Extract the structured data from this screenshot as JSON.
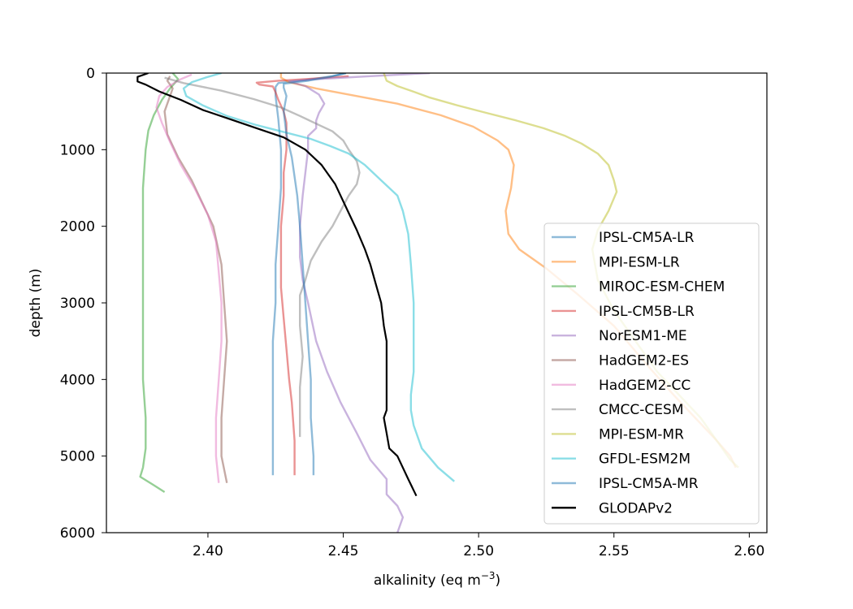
{
  "chart_data": {
    "type": "line",
    "title": "",
    "xlabel": "alkalinity (eq m",
    "xlabel_sup": "−3",
    "xlabel_end": ")",
    "ylabel": "depth (m)",
    "xlim": [
      2.3625,
      2.6065
    ],
    "ylim": [
      6000,
      0
    ],
    "y_inverted": true,
    "xticks": [
      2.4,
      2.45,
      2.5,
      2.55,
      2.6
    ],
    "xtick_labels": [
      "2.40",
      "2.45",
      "2.50",
      "2.55",
      "2.60"
    ],
    "yticks": [
      0,
      1000,
      2000,
      3000,
      4000,
      5000,
      6000
    ],
    "ytick_labels": [
      "0",
      "1000",
      "2000",
      "3000",
      "4000",
      "5000",
      "6000"
    ],
    "grid": false,
    "legend_position": "lower-right",
    "series": [
      {
        "name": "IPSL-CM5A-LR",
        "color": "#1f77b4",
        "opacity": 0.5,
        "points": [
          [
            2.451,
            0
          ],
          [
            2.446,
            40
          ],
          [
            2.436,
            90
          ],
          [
            2.426,
            130
          ],
          [
            2.425,
            180
          ],
          [
            2.425,
            300
          ],
          [
            2.426,
            600
          ],
          [
            2.427,
            1000
          ],
          [
            2.427,
            1500
          ],
          [
            2.426,
            2000
          ],
          [
            2.425,
            2500
          ],
          [
            2.425,
            3000
          ],
          [
            2.424,
            3500
          ],
          [
            2.424,
            4000
          ],
          [
            2.424,
            4500
          ],
          [
            2.424,
            5000
          ],
          [
            2.424,
            5250
          ]
        ]
      },
      {
        "name": "MPI-ESM-LR",
        "color": "#ff7f0e",
        "opacity": 0.5,
        "points": [
          [
            2.427,
            0
          ],
          [
            2.427,
            60
          ],
          [
            2.43,
            120
          ],
          [
            2.44,
            200
          ],
          [
            2.455,
            300
          ],
          [
            2.47,
            400
          ],
          [
            2.486,
            550
          ],
          [
            2.498,
            700
          ],
          [
            2.507,
            880
          ],
          [
            2.511,
            1000
          ],
          [
            2.513,
            1200
          ],
          [
            2.512,
            1500
          ],
          [
            2.51,
            1800
          ],
          [
            2.511,
            2100
          ],
          [
            2.515,
            2300
          ],
          [
            2.525,
            2550
          ],
          [
            2.537,
            2900
          ],
          [
            2.55,
            3300
          ],
          [
            2.562,
            3800
          ],
          [
            2.572,
            4200
          ],
          [
            2.58,
            4500
          ],
          [
            2.588,
            4800
          ],
          [
            2.593,
            5000
          ],
          [
            2.595,
            5150
          ]
        ]
      },
      {
        "name": "MIROC-ESM-CHEM",
        "color": "#2ca02c",
        "opacity": 0.5,
        "points": [
          [
            2.387,
            0
          ],
          [
            2.389,
            80
          ],
          [
            2.386,
            200
          ],
          [
            2.383,
            350
          ],
          [
            2.38,
            550
          ],
          [
            2.378,
            750
          ],
          [
            2.377,
            1000
          ],
          [
            2.376,
            1500
          ],
          [
            2.376,
            2000
          ],
          [
            2.376,
            2500
          ],
          [
            2.376,
            3000
          ],
          [
            2.376,
            3500
          ],
          [
            2.376,
            4000
          ],
          [
            2.377,
            4500
          ],
          [
            2.377,
            4900
          ],
          [
            2.376,
            5150
          ],
          [
            2.375,
            5270
          ],
          [
            2.38,
            5380
          ],
          [
            2.384,
            5470
          ]
        ]
      },
      {
        "name": "IPSL-CM5B-LR",
        "color": "#d62728",
        "opacity": 0.5,
        "points": [
          [
            2.452,
            40
          ],
          [
            2.44,
            70
          ],
          [
            2.426,
            100
          ],
          [
            2.418,
            125
          ],
          [
            2.419,
            150
          ],
          [
            2.424,
            175
          ],
          [
            2.425,
            250
          ],
          [
            2.426,
            350
          ],
          [
            2.428,
            500
          ],
          [
            2.429,
            650
          ],
          [
            2.429,
            800
          ],
          [
            2.429,
            1000
          ],
          [
            2.428,
            1300
          ],
          [
            2.428,
            1600
          ],
          [
            2.427,
            2000
          ],
          [
            2.427,
            2400
          ],
          [
            2.427,
            2800
          ],
          [
            2.428,
            3200
          ],
          [
            2.429,
            3600
          ],
          [
            2.43,
            4000
          ],
          [
            2.431,
            4300
          ],
          [
            2.432,
            4800
          ],
          [
            2.432,
            5250
          ]
        ]
      },
      {
        "name": "NorESM1-ME",
        "color": "#9467bd",
        "opacity": 0.5,
        "points": [
          [
            2.482,
            0
          ],
          [
            2.46,
            40
          ],
          [
            2.44,
            80
          ],
          [
            2.43,
            110
          ],
          [
            2.436,
            170
          ],
          [
            2.441,
            280
          ],
          [
            2.443,
            400
          ],
          [
            2.441,
            520
          ],
          [
            2.44,
            620
          ],
          [
            2.44,
            720
          ],
          [
            2.437,
            820
          ],
          [
            2.437,
            1000
          ],
          [
            2.436,
            1300
          ],
          [
            2.435,
            1600
          ],
          [
            2.434,
            2000
          ],
          [
            2.434,
            2400
          ],
          [
            2.435,
            2700
          ],
          [
            2.437,
            3000
          ],
          [
            2.44,
            3500
          ],
          [
            2.444,
            3900
          ],
          [
            2.449,
            4300
          ],
          [
            2.455,
            4700
          ],
          [
            2.46,
            5050
          ],
          [
            2.466,
            5300
          ],
          [
            2.466,
            5500
          ],
          [
            2.47,
            5650
          ],
          [
            2.472,
            5800
          ],
          [
            2.47,
            6000
          ]
        ]
      },
      {
        "name": "HadGEM2-ES",
        "color": "#8c564b",
        "opacity": 0.5,
        "points": [
          [
            2.386,
            40
          ],
          [
            2.385,
            100
          ],
          [
            2.387,
            200
          ],
          [
            2.386,
            300
          ],
          [
            2.384,
            500
          ],
          [
            2.385,
            800
          ],
          [
            2.389,
            1100
          ],
          [
            2.394,
            1400
          ],
          [
            2.398,
            1700
          ],
          [
            2.402,
            2000
          ],
          [
            2.405,
            2500
          ],
          [
            2.406,
            3000
          ],
          [
            2.407,
            3500
          ],
          [
            2.406,
            4000
          ],
          [
            2.405,
            4500
          ],
          [
            2.405,
            5000
          ],
          [
            2.407,
            5350
          ]
        ]
      },
      {
        "name": "HadGEM2-CC",
        "color": "#e377c2",
        "opacity": 0.5,
        "points": [
          [
            2.394,
            20
          ],
          [
            2.39,
            80
          ],
          [
            2.385,
            180
          ],
          [
            2.382,
            300
          ],
          [
            2.381,
            450
          ],
          [
            2.383,
            650
          ],
          [
            2.386,
            900
          ],
          [
            2.39,
            1200
          ],
          [
            2.395,
            1500
          ],
          [
            2.4,
            1850
          ],
          [
            2.403,
            2200
          ],
          [
            2.404,
            2600
          ],
          [
            2.405,
            3000
          ],
          [
            2.405,
            3500
          ],
          [
            2.404,
            4000
          ],
          [
            2.403,
            4500
          ],
          [
            2.403,
            5000
          ],
          [
            2.404,
            5350
          ]
        ]
      },
      {
        "name": "CMCC-CESM",
        "color": "#7f7f7f",
        "opacity": 0.5,
        "points": [
          [
            2.384,
            60
          ],
          [
            2.391,
            130
          ],
          [
            2.405,
            230
          ],
          [
            2.417,
            340
          ],
          [
            2.427,
            450
          ],
          [
            2.434,
            560
          ],
          [
            2.44,
            660
          ],
          [
            2.446,
            760
          ],
          [
            2.45,
            880
          ],
          [
            2.452,
            1000
          ],
          [
            2.455,
            1150
          ],
          [
            2.456,
            1300
          ],
          [
            2.455,
            1450
          ],
          [
            2.452,
            1600
          ],
          [
            2.449,
            1800
          ],
          [
            2.446,
            2000
          ],
          [
            2.442,
            2200
          ],
          [
            2.438,
            2450
          ],
          [
            2.436,
            2700
          ],
          [
            2.434,
            2900
          ],
          [
            2.434,
            3300
          ],
          [
            2.435,
            3700
          ],
          [
            2.434,
            4100
          ],
          [
            2.434,
            4500
          ],
          [
            2.434,
            4750
          ]
        ]
      },
      {
        "name": "MPI-ESM-MR",
        "color": "#bcbd22",
        "opacity": 0.5,
        "points": [
          [
            2.465,
            0
          ],
          [
            2.466,
            100
          ],
          [
            2.47,
            170
          ],
          [
            2.475,
            230
          ],
          [
            2.482,
            320
          ],
          [
            2.492,
            420
          ],
          [
            2.503,
            520
          ],
          [
            2.514,
            620
          ],
          [
            2.524,
            720
          ],
          [
            2.532,
            820
          ],
          [
            2.538,
            920
          ],
          [
            2.544,
            1050
          ],
          [
            2.548,
            1200
          ],
          [
            2.55,
            1400
          ],
          [
            2.551,
            1550
          ],
          [
            2.548,
            1800
          ],
          [
            2.544,
            2050
          ],
          [
            2.542,
            2300
          ],
          [
            2.544,
            2700
          ],
          [
            2.55,
            3100
          ],
          [
            2.558,
            3500
          ],
          [
            2.566,
            3900
          ],
          [
            2.574,
            4200
          ],
          [
            2.582,
            4500
          ],
          [
            2.588,
            4800
          ],
          [
            2.593,
            5050
          ],
          [
            2.596,
            5150
          ]
        ]
      },
      {
        "name": "GFDL-ESM2M",
        "color": "#17becf",
        "opacity": 0.5,
        "points": [
          [
            2.405,
            0
          ],
          [
            2.403,
            20
          ],
          [
            2.399,
            60
          ],
          [
            2.394,
            120
          ],
          [
            2.391,
            200
          ],
          [
            2.392,
            300
          ],
          [
            2.398,
            420
          ],
          [
            2.407,
            560
          ],
          [
            2.418,
            680
          ],
          [
            2.428,
            770
          ],
          [
            2.438,
            860
          ],
          [
            2.445,
            950
          ],
          [
            2.452,
            1050
          ],
          [
            2.458,
            1200
          ],
          [
            2.464,
            1400
          ],
          [
            2.47,
            1600
          ],
          [
            2.472,
            1800
          ],
          [
            2.474,
            2100
          ],
          [
            2.475,
            2500
          ],
          [
            2.476,
            3000
          ],
          [
            2.476,
            3500
          ],
          [
            2.476,
            3900
          ],
          [
            2.475,
            4200
          ],
          [
            2.475,
            4400
          ],
          [
            2.476,
            4600
          ],
          [
            2.479,
            4900
          ],
          [
            2.485,
            5150
          ],
          [
            2.491,
            5330
          ]
        ]
      },
      {
        "name": "IPSL-CM5A-MR",
        "color": "#1f77b4",
        "opacity": 0.5,
        "points": [
          [
            2.451,
            0
          ],
          [
            2.445,
            50
          ],
          [
            2.437,
            100
          ],
          [
            2.428,
            140
          ],
          [
            2.428,
            190
          ],
          [
            2.429,
            300
          ],
          [
            2.428,
            500
          ],
          [
            2.429,
            800
          ],
          [
            2.431,
            1100
          ],
          [
            2.433,
            1600
          ],
          [
            2.434,
            2000
          ],
          [
            2.435,
            2500
          ],
          [
            2.436,
            3000
          ],
          [
            2.437,
            3500
          ],
          [
            2.438,
            4000
          ],
          [
            2.438,
            4500
          ],
          [
            2.439,
            5000
          ],
          [
            2.439,
            5250
          ]
        ]
      },
      {
        "name": "GLODAPv2",
        "color": "#000000",
        "opacity": 1.0,
        "points": [
          [
            2.378,
            0
          ],
          [
            2.374,
            50
          ],
          [
            2.374,
            110
          ],
          [
            2.377,
            150
          ],
          [
            2.382,
            240
          ],
          [
            2.39,
            350
          ],
          [
            2.398,
            480
          ],
          [
            2.408,
            600
          ],
          [
            2.418,
            720
          ],
          [
            2.428,
            840
          ],
          [
            2.436,
            1000
          ],
          [
            2.442,
            1200
          ],
          [
            2.447,
            1450
          ],
          [
            2.451,
            1750
          ],
          [
            2.455,
            2050
          ],
          [
            2.458,
            2300
          ],
          [
            2.46,
            2500
          ],
          [
            2.462,
            2750
          ],
          [
            2.464,
            3000
          ],
          [
            2.465,
            3300
          ],
          [
            2.466,
            3500
          ],
          [
            2.466,
            3800
          ],
          [
            2.466,
            4100
          ],
          [
            2.466,
            4400
          ],
          [
            2.465,
            4500
          ],
          [
            2.466,
            4700
          ],
          [
            2.467,
            4900
          ],
          [
            2.47,
            5000
          ],
          [
            2.474,
            5300
          ],
          [
            2.477,
            5520
          ]
        ]
      }
    ]
  }
}
